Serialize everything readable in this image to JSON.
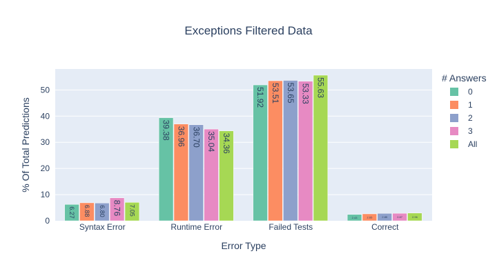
{
  "chart_data": {
    "type": "bar",
    "title": "Exceptions Filtered Data",
    "xlabel": "Error Type",
    "ylabel": "% Of Total Predictions",
    "categories": [
      "Syntax Error",
      "Runtime Error",
      "Failed Tests",
      "Correct"
    ],
    "ylim": [
      0,
      58
    ],
    "yticks": [
      0,
      10,
      20,
      30,
      40,
      50
    ],
    "grid": true,
    "legend": {
      "title": "# Answers",
      "placement": "right"
    },
    "series": [
      {
        "name": "0",
        "color": "#66c2a5",
        "values": [
          6.27,
          39.38,
          51.92,
          2.43
        ],
        "labels": [
          "6.27",
          "39.38",
          "51.92",
          "2.43"
        ]
      },
      {
        "name": "1",
        "color": "#fc8d62",
        "values": [
          6.88,
          36.96,
          53.51,
          2.65
        ],
        "labels": [
          "6.88",
          "36.96",
          "53.51",
          "2.65"
        ]
      },
      {
        "name": "2",
        "color": "#8da0cb",
        "values": [
          6.8,
          36.7,
          53.65,
          2.85
        ],
        "labels": [
          "6.80",
          "36.70",
          "53.65",
          "2.85"
        ]
      },
      {
        "name": "3",
        "color": "#e78ac3",
        "values": [
          8.76,
          35.04,
          53.33,
          2.87
        ],
        "labels": [
          "8.76",
          "35.04",
          "53.33",
          "2.87"
        ]
      },
      {
        "name": "All",
        "color": "#a6d854",
        "values": [
          7.05,
          34.36,
          55.63,
          2.96
        ],
        "labels": [
          "7.05",
          "34.36",
          "55.63",
          "2.96"
        ]
      }
    ]
  },
  "colors": {
    "plot_background": "#e5ecf6",
    "text": "#2a3f5f",
    "grid": "#ffffff"
  }
}
